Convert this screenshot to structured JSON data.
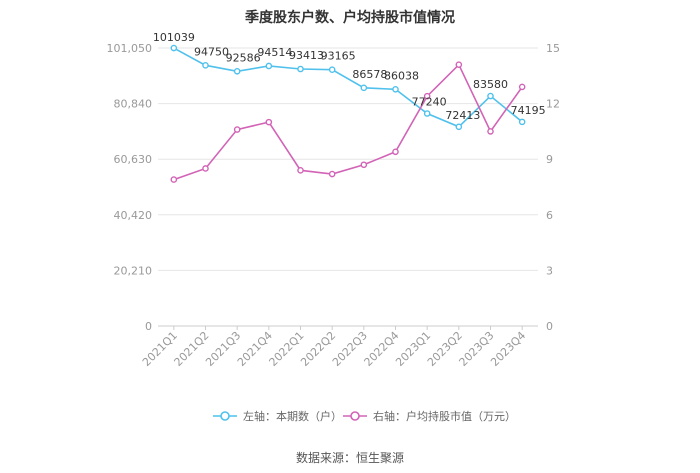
{
  "chart_data": {
    "type": "line",
    "title": "季度股东户数、户均持股市值情况",
    "categories": [
      "2021Q1",
      "2021Q2",
      "2021Q3",
      "2021Q4",
      "2022Q1",
      "2022Q2",
      "2022Q3",
      "2022Q4",
      "2023Q1",
      "2023Q2",
      "2023Q3",
      "2023Q4"
    ],
    "left_axis": {
      "ticks": [
        "0",
        "20,210",
        "40,420",
        "60,630",
        "80,840",
        "101,050"
      ],
      "ylim": [
        0,
        101050
      ]
    },
    "right_axis": {
      "ticks": [
        "0",
        "3",
        "6",
        "9",
        "12",
        "15"
      ],
      "ylim": [
        0,
        15
      ]
    },
    "series": [
      {
        "name": "左轴：本期数（户）",
        "axis": "left",
        "color": "#4fc1ec",
        "values": [
          101039,
          94750,
          92586,
          94514,
          93413,
          93165,
          86578,
          86038,
          77240,
          72413,
          83580,
          74195
        ],
        "labels": [
          "101039",
          "94750",
          "92586",
          "94514",
          "93413",
          "93165",
          "86578",
          "86038",
          "77240",
          "72413",
          "83580",
          "74195"
        ]
      },
      {
        "name": "右轴：户均持股市值（万元）",
        "axis": "right",
        "color": "#d263b6",
        "values": [
          7.9,
          8.5,
          10.6,
          11.0,
          8.4,
          8.2,
          8.7,
          9.4,
          12.4,
          14.1,
          10.5,
          12.9
        ]
      }
    ],
    "grid": true,
    "legend_position": "bottom"
  },
  "source_text": "数据来源：恒生聚源"
}
